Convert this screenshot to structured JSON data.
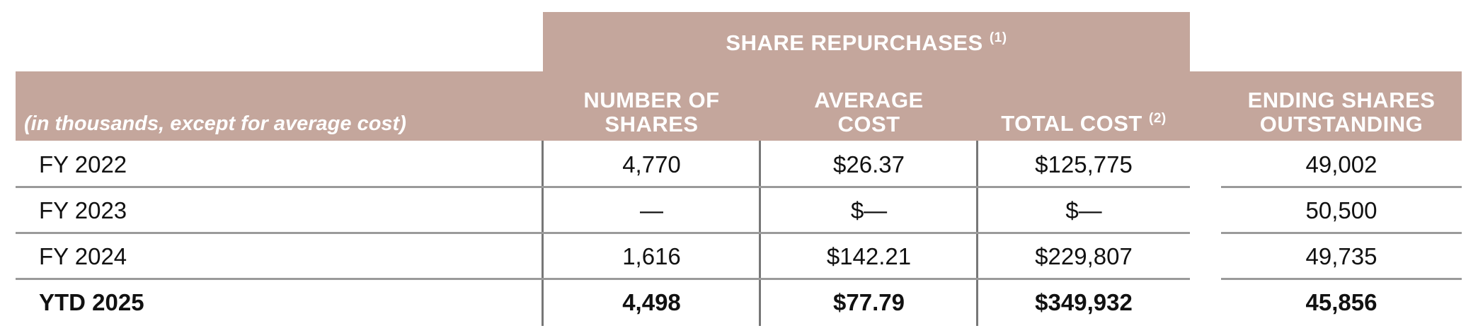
{
  "table": {
    "group_header": "SHARE REPURCHASES",
    "group_header_note": "(1)",
    "unit_note": "(in thousands, except for average cost)",
    "columns": {
      "shares_line1": "NUMBER OF",
      "shares_line2": "SHARES",
      "avg_line1": "AVERAGE",
      "avg_line2": "COST",
      "total": "TOTAL COST",
      "total_note": "(2)",
      "ending_line1": "ENDING SHARES",
      "ending_line2": "OUTSTANDING"
    },
    "rows": [
      {
        "label": "FY 2022",
        "shares": "4,770",
        "avg_cost": "$26.37",
        "total_cost": "$125,775",
        "ending": "49,002"
      },
      {
        "label": "FY 2023",
        "shares": "—",
        "avg_cost": "$—",
        "total_cost": "$—",
        "ending": "50,500"
      },
      {
        "label": "FY 2024",
        "shares": "1,616",
        "avg_cost": "$142.21",
        "total_cost": "$229,807",
        "ending": "49,735"
      },
      {
        "label": "YTD 2025",
        "shares": "4,498",
        "avg_cost": "$77.79",
        "total_cost": "$349,932",
        "ending": "45,856"
      }
    ]
  },
  "colors": {
    "header_bg": "#c4a69c",
    "header_text": "#ffffff"
  }
}
